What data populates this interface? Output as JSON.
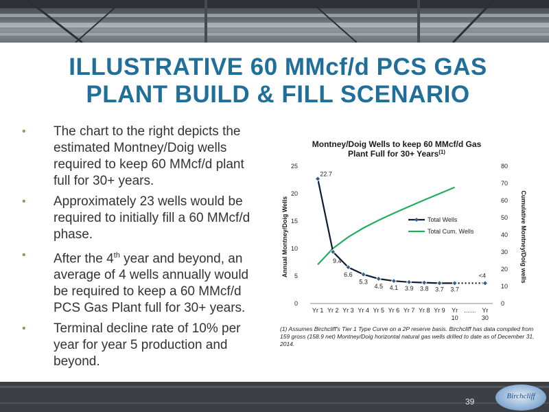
{
  "title": {
    "line1": "ILLUSTRATIVE 60 MMcf/d PCS GAS",
    "line2": "PLANT BUILD & FILL SCENARIO"
  },
  "bullets": [
    {
      "text": "The chart to the right depicts the estimated Montney/Doig wells required to keep 60 MMcf/d plant full for 30+ years."
    },
    {
      "text": "Approximately 23 wells would be required to initially fill a 60 MMcf/d phase."
    },
    {
      "pre": "After the 4",
      "sup": "th",
      "post": " year and beyond, an average of 4 wells annually would be required to keep a 60 MMcf/d PCS Gas Plant full for 30+ years."
    },
    {
      "text": "Terminal decline rate of 10% per year for year 5 production and beyond."
    }
  ],
  "footnote": "(1) Assumes Birchcliff's Tier 1 Type Curve on a 2P reserve basis. Birchcliff has data compiled from 159 gross (158.9 net) Montney/Doig horizontal natural gas wells drilled to date as of December 31, 2014.",
  "page_number": "39",
  "logo_text": "Birchcliff",
  "chart_data": {
    "type": "line",
    "title_line1": "Montney/Doig Wells to keep 60 MMcf/d Gas",
    "title_line2": "Plant Full for 30+ Years",
    "title_superscript": "(1)",
    "ylabel": "Annual Montney/Doig Wells",
    "ylabel_right": "Cumulative Montney/Doig wells",
    "ylim": [
      0,
      25
    ],
    "ylim_right": [
      0,
      80
    ],
    "yticks": [
      "0",
      "5",
      "10",
      "15",
      "20",
      "25"
    ],
    "yticks_right": [
      "0",
      "10",
      "20",
      "30",
      "40",
      "50",
      "60",
      "70",
      "80"
    ],
    "categories": [
      "Yr 1",
      "Yr 2",
      "Yr 3",
      "Yr 4",
      "Yr 5",
      "Yr 6",
      "Yr 7",
      "Yr 8",
      "Yr 9",
      "Yr\n10",
      "……",
      "Yr\n30"
    ],
    "legend_position": "center-right",
    "colors": {
      "total_wells": "#0d1b33",
      "cumulative": "#1fae5c"
    },
    "series": [
      {
        "name": "Total Wells",
        "axis": "left",
        "values": [
          22.7,
          9.4,
          6.6,
          5.3,
          4.5,
          4.1,
          3.9,
          3.8,
          3.7,
          3.7,
          null,
          3.7
        ],
        "data_labels": [
          "22.7",
          "9.4",
          "6.6",
          "5.3",
          "4.5",
          "4.1",
          "3.9",
          "3.8",
          "3.7",
          "3.7",
          "",
          "<4"
        ]
      },
      {
        "name": "Total Cum. Wells",
        "axis": "right",
        "values": [
          22.7,
          32.1,
          38.7,
          44.0,
          48.5,
          52.6,
          56.5,
          60.3,
          64.0,
          67.7,
          null,
          null
        ]
      }
    ]
  }
}
